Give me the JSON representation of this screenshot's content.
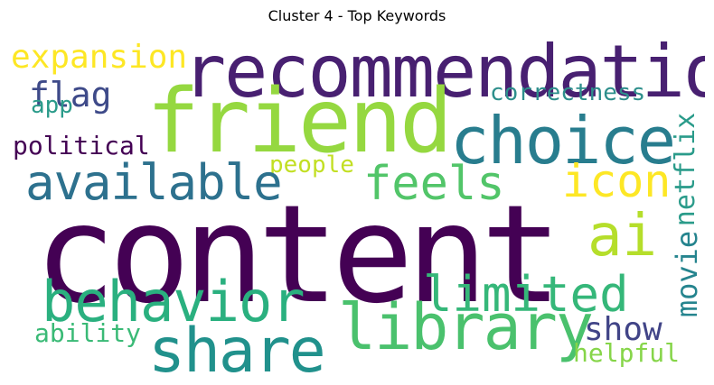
{
  "title": "Cluster 4 - Top Keywords",
  "words": {
    "content": "content",
    "recommendation": "recommendation",
    "friend": "friend",
    "choice": "choice",
    "expansion": "expansion",
    "flag": "flag",
    "app": "app",
    "correctness": "correctness",
    "political": "political",
    "people": "people",
    "available": "available",
    "feels": "feels",
    "icon": "icon",
    "netflix": "netflix",
    "ai": "ai",
    "movie": "movie",
    "behavior": "behavior",
    "limited": "limited",
    "library": "library",
    "share": "share",
    "ability": "ability",
    "show": "show",
    "helpful": "helpful"
  },
  "colors": {
    "content": "#440154",
    "recommendation": "#482071",
    "friend": "#95d840",
    "choice": "#287d8e",
    "expansion": "#fde725",
    "flag": "#3e4a89",
    "app": "#2a9b8a",
    "correctness": "#2e8f8c",
    "political": "#440154",
    "people": "#c2df23",
    "available": "#2d718e",
    "feels": "#52c569",
    "icon": "#fde725",
    "netflix": "#2a9b8a",
    "ai": "#b5de2b",
    "movie": "#25848e",
    "behavior": "#2ab07f",
    "limited": "#35b779",
    "library": "#4ac16d",
    "share": "#21918c",
    "ability": "#3aba76",
    "show": "#414487",
    "helpful": "#86d549"
  }
}
